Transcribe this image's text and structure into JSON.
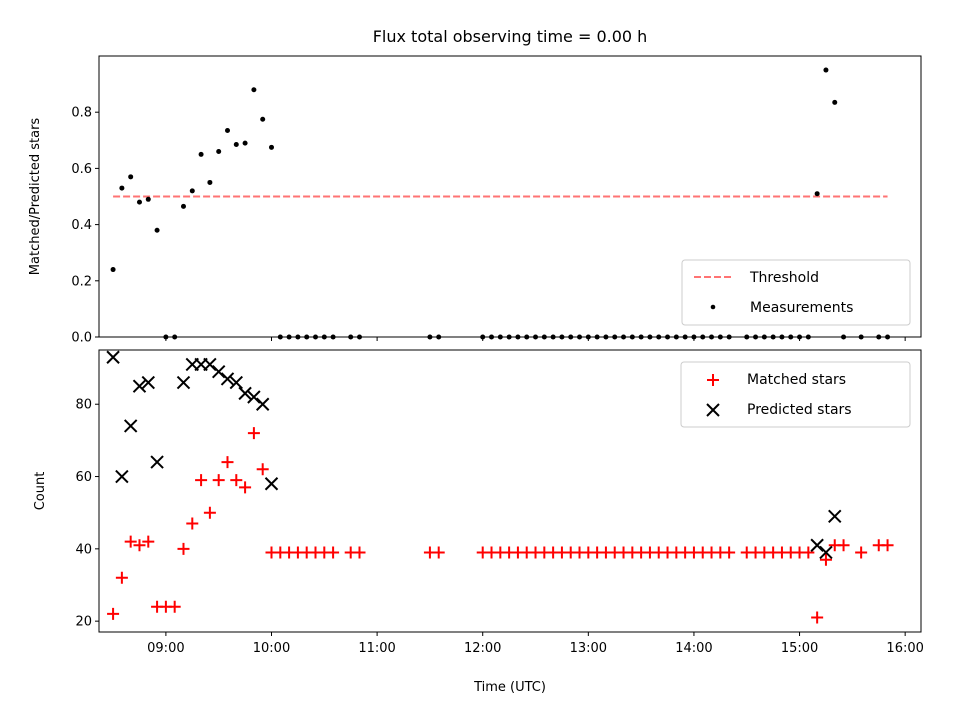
{
  "chart_data": [
    {
      "type": "scatter",
      "title": "Flux total observing time = 0.00 h",
      "xlabel": "",
      "ylabel": "Matched/Predicted stars",
      "xlim": [
        "08:22",
        "16:09"
      ],
      "ylim": [
        0,
        1.0
      ],
      "yticks": [
        0.0,
        0.2,
        0.4,
        0.6,
        0.8
      ],
      "ytick_labels": [
        "0.0",
        "0.2",
        "0.4",
        "0.6",
        "0.8"
      ],
      "xticks": [
        "09:00",
        "10:00",
        "11:00",
        "12:00",
        "13:00",
        "14:00",
        "15:00",
        "16:00"
      ],
      "legend_placement": "lower right",
      "series": [
        {
          "name": "Threshold",
          "style": "dashed-line",
          "color": "#ff7373",
          "x": [
            "08:30",
            "15:50"
          ],
          "y": [
            0.5,
            0.5
          ]
        },
        {
          "name": "Measurements",
          "style": "dot",
          "color": "#000000",
          "x": [
            "08:30",
            "08:35",
            "08:40",
            "08:45",
            "08:50",
            "08:55",
            "09:00",
            "09:05",
            "09:10",
            "09:15",
            "09:20",
            "09:25",
            "09:30",
            "09:35",
            "09:40",
            "09:45",
            "09:50",
            "09:55",
            "10:00",
            "10:05",
            "10:10",
            "10:15",
            "10:20",
            "10:25",
            "10:30",
            "10:35",
            "10:45",
            "10:50",
            "11:30",
            "11:35",
            "12:00",
            "12:05",
            "12:10",
            "12:15",
            "12:20",
            "12:25",
            "12:30",
            "12:35",
            "12:40",
            "12:45",
            "12:50",
            "12:55",
            "13:00",
            "13:05",
            "13:10",
            "13:15",
            "13:20",
            "13:25",
            "13:30",
            "13:35",
            "13:40",
            "13:45",
            "13:50",
            "13:55",
            "14:00",
            "14:05",
            "14:10",
            "14:15",
            "14:20",
            "14:30",
            "14:35",
            "14:40",
            "14:45",
            "14:50",
            "14:55",
            "15:00",
            "15:05",
            "15:10",
            "15:15",
            "15:20",
            "15:25",
            "15:35",
            "15:45",
            "15:50"
          ],
          "y": [
            0.24,
            0.53,
            0.57,
            0.48,
            0.49,
            0.38,
            0.0,
            0.0,
            0.465,
            0.52,
            0.65,
            0.55,
            0.66,
            0.735,
            0.685,
            0.69,
            0.88,
            0.775,
            0.675,
            0.0,
            0.0,
            0.0,
            0.0,
            0.0,
            0.0,
            0.0,
            0.0,
            0.0,
            0.0,
            0.0,
            0.0,
            0.0,
            0.0,
            0.0,
            0.0,
            0.0,
            0.0,
            0.0,
            0.0,
            0.0,
            0.0,
            0.0,
            0.0,
            0.0,
            0.0,
            0.0,
            0.0,
            0.0,
            0.0,
            0.0,
            0.0,
            0.0,
            0.0,
            0.0,
            0.0,
            0.0,
            0.0,
            0.0,
            0.0,
            0.0,
            0.0,
            0.0,
            0.0,
            0.0,
            0.0,
            0.0,
            0.0,
            0.51,
            0.95,
            0.835,
            0.0,
            0.0,
            0.0,
            0.0
          ]
        }
      ]
    },
    {
      "type": "scatter",
      "title": "",
      "xlabel": "Time (UTC)",
      "ylabel": "Count",
      "xlim": [
        "08:22",
        "16:09"
      ],
      "ylim": [
        17,
        95
      ],
      "yticks": [
        20,
        40,
        60,
        80
      ],
      "ytick_labels": [
        "20",
        "40",
        "60",
        "80"
      ],
      "xticks": [
        "09:00",
        "10:00",
        "11:00",
        "12:00",
        "13:00",
        "14:00",
        "15:00",
        "16:00"
      ],
      "legend_placement": "upper right",
      "series": [
        {
          "name": "Matched stars",
          "style": "plus",
          "color": "#ff0000",
          "x": [
            "08:30",
            "08:35",
            "08:40",
            "08:45",
            "08:50",
            "08:55",
            "09:00",
            "09:05",
            "09:10",
            "09:15",
            "09:20",
            "09:25",
            "09:30",
            "09:35",
            "09:40",
            "09:45",
            "09:50",
            "09:55",
            "10:00",
            "10:05",
            "10:10",
            "10:15",
            "10:20",
            "10:25",
            "10:30",
            "10:35",
            "10:45",
            "10:50",
            "11:30",
            "11:35",
            "12:00",
            "12:05",
            "12:10",
            "12:15",
            "12:20",
            "12:25",
            "12:30",
            "12:35",
            "12:40",
            "12:45",
            "12:50",
            "12:55",
            "13:00",
            "13:05",
            "13:10",
            "13:15",
            "13:20",
            "13:25",
            "13:30",
            "13:35",
            "13:40",
            "13:45",
            "13:50",
            "13:55",
            "14:00",
            "14:05",
            "14:10",
            "14:15",
            "14:20",
            "14:30",
            "14:35",
            "14:40",
            "14:45",
            "14:50",
            "14:55",
            "15:00",
            "15:05",
            "15:10",
            "15:15",
            "15:20",
            "15:25",
            "15:35",
            "15:45",
            "15:50"
          ],
          "y": [
            22,
            32,
            42,
            41,
            42,
            24,
            24,
            24,
            40,
            47,
            59,
            50,
            59,
            64,
            59,
            57,
            72,
            62,
            39,
            39,
            39,
            39,
            39,
            39,
            39,
            39,
            39,
            39,
            39,
            39,
            39,
            39,
            39,
            39,
            39,
            39,
            39,
            39,
            39,
            39,
            39,
            39,
            39,
            39,
            39,
            39,
            39,
            39,
            39,
            39,
            39,
            39,
            39,
            39,
            39,
            39,
            39,
            39,
            39,
            39,
            39,
            39,
            39,
            39,
            39,
            39,
            39,
            21,
            37,
            41,
            41,
            39,
            41,
            41
          ]
        },
        {
          "name": "Predicted stars",
          "style": "x",
          "color": "#000000",
          "x": [
            "08:30",
            "08:35",
            "08:40",
            "08:45",
            "08:50",
            "08:55",
            "09:10",
            "09:15",
            "09:20",
            "09:25",
            "09:30",
            "09:35",
            "09:40",
            "09:45",
            "09:50",
            "09:55",
            "10:00",
            "15:10",
            "15:15",
            "15:20"
          ],
          "y": [
            93,
            60,
            74,
            85,
            86,
            64,
            86,
            91,
            91,
            91,
            89,
            87,
            86,
            83,
            82,
            80,
            58,
            41,
            39,
            49
          ]
        }
      ]
    }
  ]
}
